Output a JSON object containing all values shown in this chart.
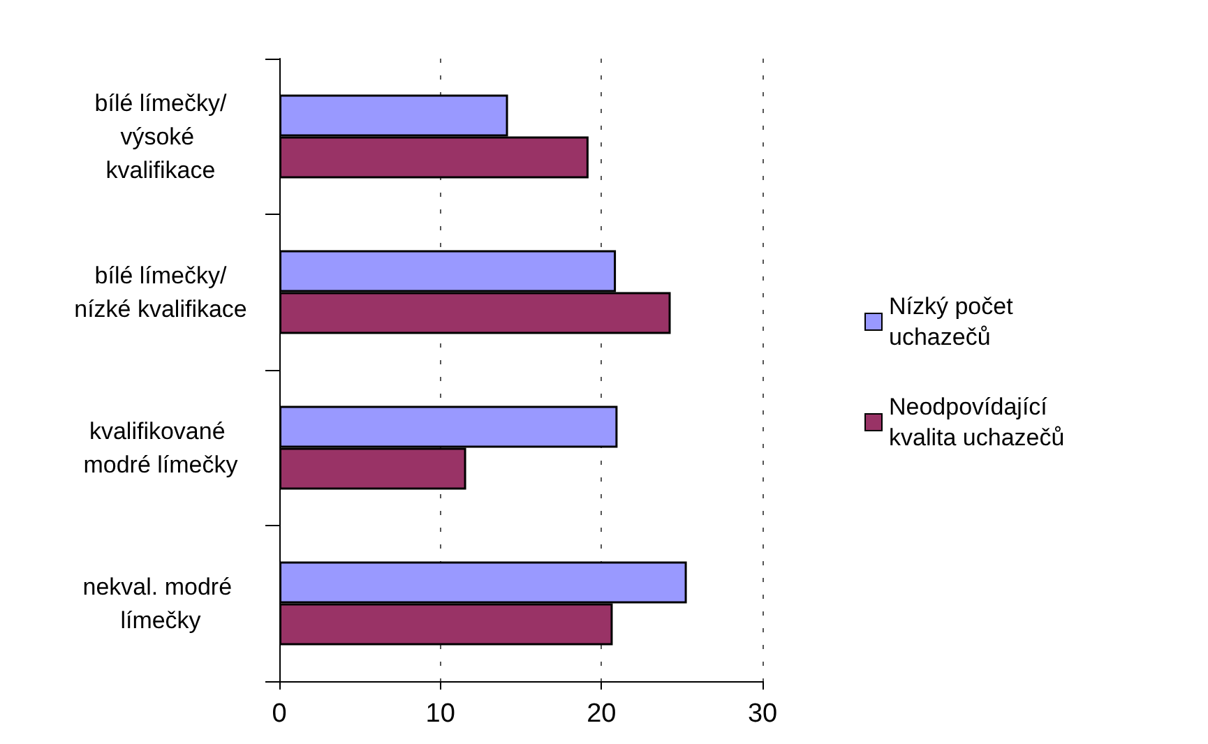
{
  "chart_data": {
    "type": "bar",
    "orientation": "horizontal",
    "categories": [
      "bílé límečky/výsoké kvalifikace",
      "bílé límečky/nízké kvalifikace",
      "kvalifikované modré límečky",
      "nekval. modré límečky"
    ],
    "series": [
      {
        "name": "Nízký počet uchazečů",
        "color": "#9999ff",
        "values": [
          14.2,
          20.9,
          21.0,
          25.3
        ]
      },
      {
        "name": "Neodpovídající kvalita uchazečů",
        "color": "#993366",
        "values": [
          19.2,
          24.3,
          11.6,
          20.7
        ]
      }
    ],
    "xlim": [
      0,
      30
    ],
    "xticks": [
      0,
      10,
      20,
      30
    ],
    "grid": "x",
    "legend": "right"
  }
}
